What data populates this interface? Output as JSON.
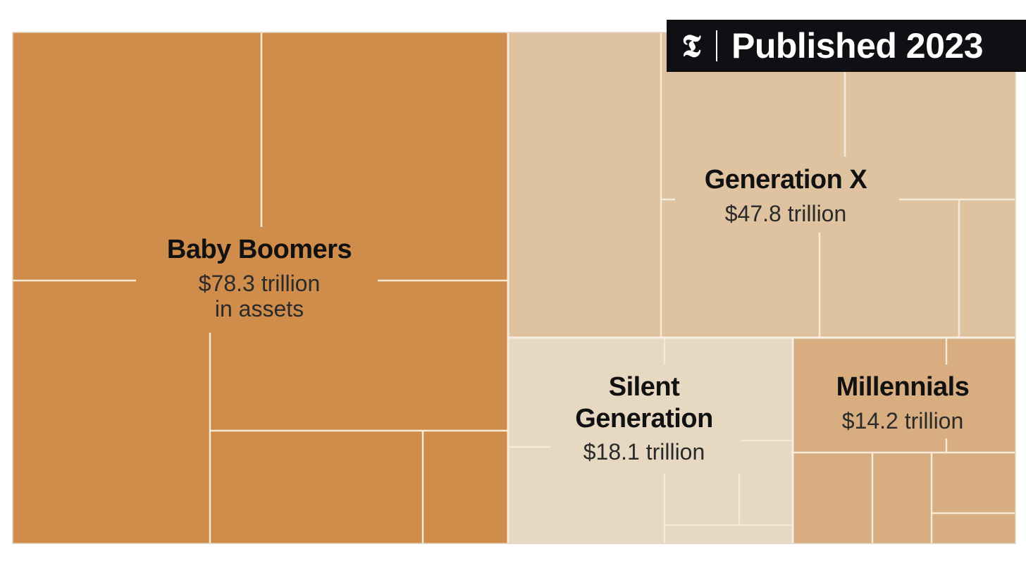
{
  "badge": {
    "logo_glyph": "𝕿",
    "text": "Published 2023",
    "background": "#0f0f14"
  },
  "chart_data": {
    "type": "treemap",
    "value_unit": "trillion dollars",
    "series": [
      {
        "name": "Baby Boomers",
        "value": 78.3,
        "value_label": "$78.3 trillion",
        "value_label_extra": "in assets",
        "color": "#cf8c4a"
      },
      {
        "name": "Generation X",
        "value": 47.8,
        "value_label": "$47.8 trillion",
        "color": "#dfc3a0"
      },
      {
        "name": "Silent Generation",
        "name_lines": [
          "Silent",
          "Generation"
        ],
        "value": 18.1,
        "value_label": "$18.1 trillion",
        "color": "#e6d8c1"
      },
      {
        "name": "Millennials",
        "value": 14.2,
        "value_label": "$14.2 trillion",
        "color": "#d8ad80"
      }
    ]
  }
}
